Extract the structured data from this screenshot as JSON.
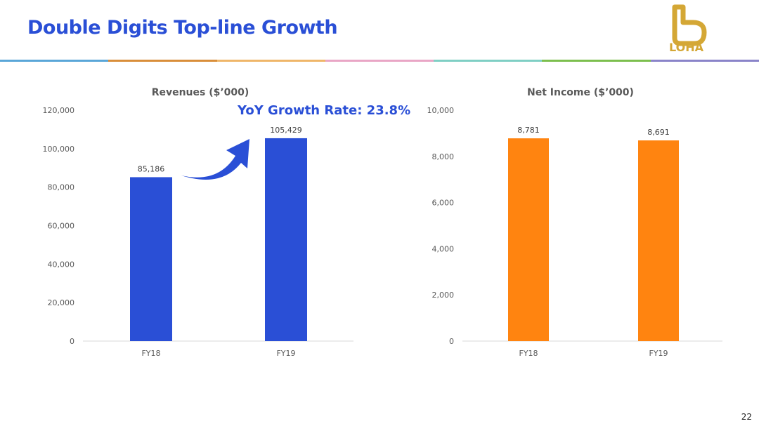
{
  "title": "Double Digits Top-line Growth",
  "logo": "LOHA",
  "page_number": "22",
  "annotation": "YoY Growth Rate: 23.8%",
  "stripe_colors": [
    "#5aa6d8",
    "#d98e3a",
    "#efb66a",
    "#e9a6c6",
    "#7fcfc4",
    "#7cbf4e",
    "#8a84c9"
  ],
  "chart_data": [
    {
      "type": "bar",
      "title": "Revenues ($’000)",
      "categories": [
        "FY18",
        "FY19"
      ],
      "values": [
        85186,
        105429
      ],
      "value_labels": [
        "85,186",
        "105,429"
      ],
      "ylim": [
        0,
        120000
      ],
      "yticks": [
        "0",
        "20,000",
        "40,000",
        "60,000",
        "80,000",
        "100,000",
        "120,000"
      ],
      "color": "#2a4fd6",
      "grid": false
    },
    {
      "type": "bar",
      "title": "Net Income ($’000)",
      "categories": [
        "FY18",
        "FY19"
      ],
      "values": [
        8781,
        8691
      ],
      "value_labels": [
        "8,781",
        "8,691"
      ],
      "ylim": [
        0,
        10000
      ],
      "yticks": [
        "0",
        "2,000",
        "4,000",
        "6,000",
        "8,000",
        "10,000"
      ],
      "color": "#ff8410",
      "grid": false
    }
  ]
}
